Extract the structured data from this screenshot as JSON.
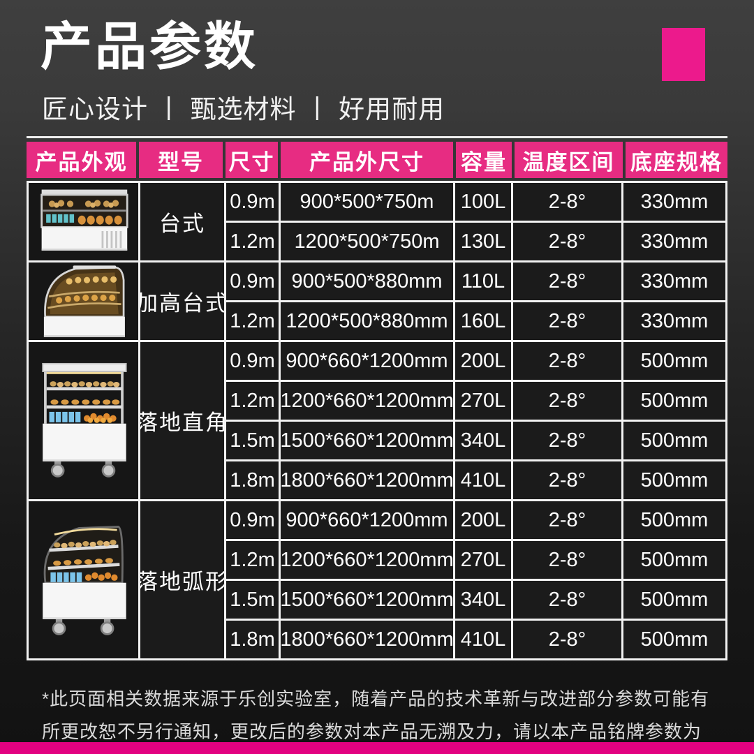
{
  "page": {
    "title": "产品参数",
    "subtitle": "匠心设计 丨 甄选材料 丨 好用耐用",
    "footer_note": "*此页面相关数据来源于乐创实验室，随着产品的技术革新与改进部分参数可能有所更改恕不另行通知，更改后的参数对本产品无溯及力，请以本产品铭牌参数为准。",
    "colors": {
      "accent_header": "#e72c82",
      "accent_square": "#ec1a8c",
      "bottom_bar": "#e20180",
      "cell_background": "#1b1b1b",
      "grid_line": "#f2f2f2"
    }
  },
  "table": {
    "headers": [
      "产品外观",
      "型号",
      "尺寸",
      "产品外尺寸",
      "容量",
      "温度区间",
      "底座规格"
    ],
    "groups": [
      {
        "model": "台式",
        "icon": "countertop-straight",
        "rows": [
          {
            "size": "0.9m",
            "dims": "900*500*750m",
            "capacity": "100L",
            "temp": "2-8°",
            "base": "330mm"
          },
          {
            "size": "1.2m",
            "dims": "1200*500*750m",
            "capacity": "130L",
            "temp": "2-8°",
            "base": "330mm"
          }
        ]
      },
      {
        "model": "加高台式",
        "icon": "countertop-curved",
        "rows": [
          {
            "size": "0.9m",
            "dims": "900*500*880mm",
            "capacity": "110L",
            "temp": "2-8°",
            "base": "330mm"
          },
          {
            "size": "1.2m",
            "dims": "1200*500*880mm",
            "capacity": "160L",
            "temp": "2-8°",
            "base": "330mm"
          }
        ]
      },
      {
        "model": "落地直角",
        "icon": "floor-straight",
        "rows": [
          {
            "size": "0.9m",
            "dims": "900*660*1200mm",
            "capacity": "200L",
            "temp": "2-8°",
            "base": "500mm"
          },
          {
            "size": "1.2m",
            "dims": "1200*660*1200mm",
            "capacity": "270L",
            "temp": "2-8°",
            "base": "500mm"
          },
          {
            "size": "1.5m",
            "dims": "1500*660*1200mm",
            "capacity": "340L",
            "temp": "2-8°",
            "base": "500mm"
          },
          {
            "size": "1.8m",
            "dims": "1800*660*1200mm",
            "capacity": "410L",
            "temp": "2-8°",
            "base": "500mm"
          }
        ]
      },
      {
        "model": "落地弧形",
        "icon": "floor-curved",
        "rows": [
          {
            "size": "0.9m",
            "dims": "900*660*1200mm",
            "capacity": "200L",
            "temp": "2-8°",
            "base": "500mm"
          },
          {
            "size": "1.2m",
            "dims": "1200*660*1200mm",
            "capacity": "270L",
            "temp": "2-8°",
            "base": "500mm"
          },
          {
            "size": "1.5m",
            "dims": "1500*660*1200mm",
            "capacity": "340L",
            "temp": "2-8°",
            "base": "500mm"
          },
          {
            "size": "1.8m",
            "dims": "1800*660*1200mm",
            "capacity": "410L",
            "temp": "2-8°",
            "base": "500mm"
          }
        ]
      }
    ]
  }
}
